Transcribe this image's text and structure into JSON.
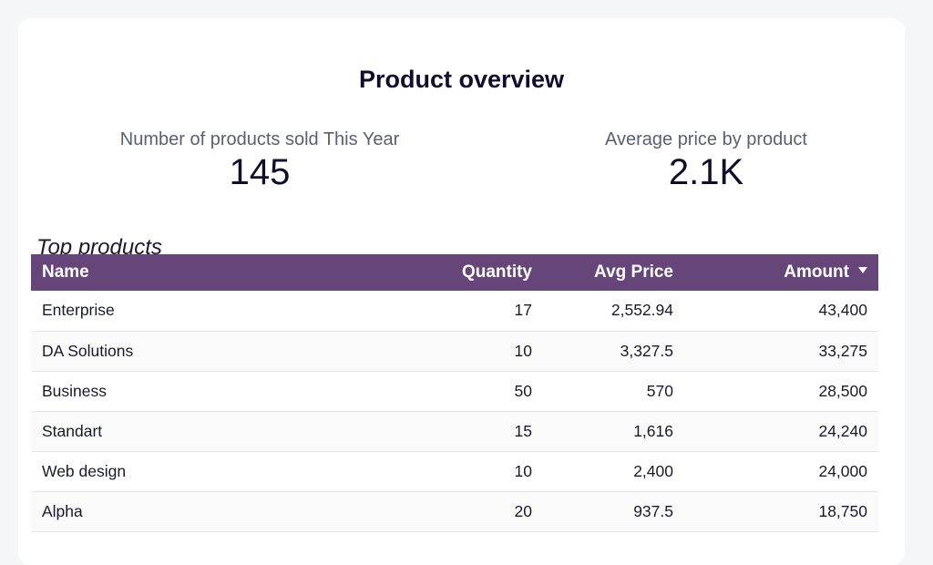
{
  "page": {
    "title": "Product overview"
  },
  "kpis": [
    {
      "label": "Number of products sold This Year",
      "value": "145"
    },
    {
      "label": "Average price by product",
      "value": "2.1K"
    }
  ],
  "top_products": {
    "title": "Top products",
    "columns": [
      "Name",
      "Quantity",
      "Avg Price",
      "Amount"
    ],
    "sort": {
      "column": "Amount",
      "direction": "descending"
    },
    "rows": [
      {
        "name": "Enterprise",
        "quantity": "17",
        "avg_price": "2,552.94",
        "amount": "43,400"
      },
      {
        "name": "DA Solutions",
        "quantity": "10",
        "avg_price": "3,327.5",
        "amount": "33,275"
      },
      {
        "name": "Business",
        "quantity": "50",
        "avg_price": "570",
        "amount": "28,500"
      },
      {
        "name": "Standart",
        "quantity": "15",
        "avg_price": "1,616",
        "amount": "24,240"
      },
      {
        "name": "Web design",
        "quantity": "10",
        "avg_price": "2,400",
        "amount": "24,000"
      },
      {
        "name": "Alpha",
        "quantity": "20",
        "avg_price": "937.5",
        "amount": "18,750"
      }
    ]
  },
  "colors": {
    "header_bg": "#66467a",
    "card_bg": "#ffffff",
    "page_bg": "#f4f6f8"
  },
  "icons": {
    "sort": "caret-down-icon"
  }
}
